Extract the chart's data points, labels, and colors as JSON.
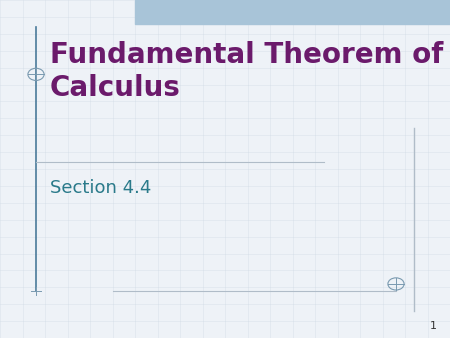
{
  "bg_color": "#eef2f7",
  "grid_color": "#c8d4e0",
  "header_color": "#a8c4d8",
  "title_text": "Fundamental Theorem of\nCalculus",
  "title_color": "#6b1a6b",
  "subtitle_text": "Section 4.4",
  "subtitle_color": "#2a7a8a",
  "page_number": "1",
  "page_num_color": "#333333",
  "line_color": "#b0bcc8",
  "accent_color": "#7a9ab0",
  "left_bar_color": "#4a7a9a",
  "figsize": [
    4.5,
    3.38
  ],
  "dpi": 100
}
